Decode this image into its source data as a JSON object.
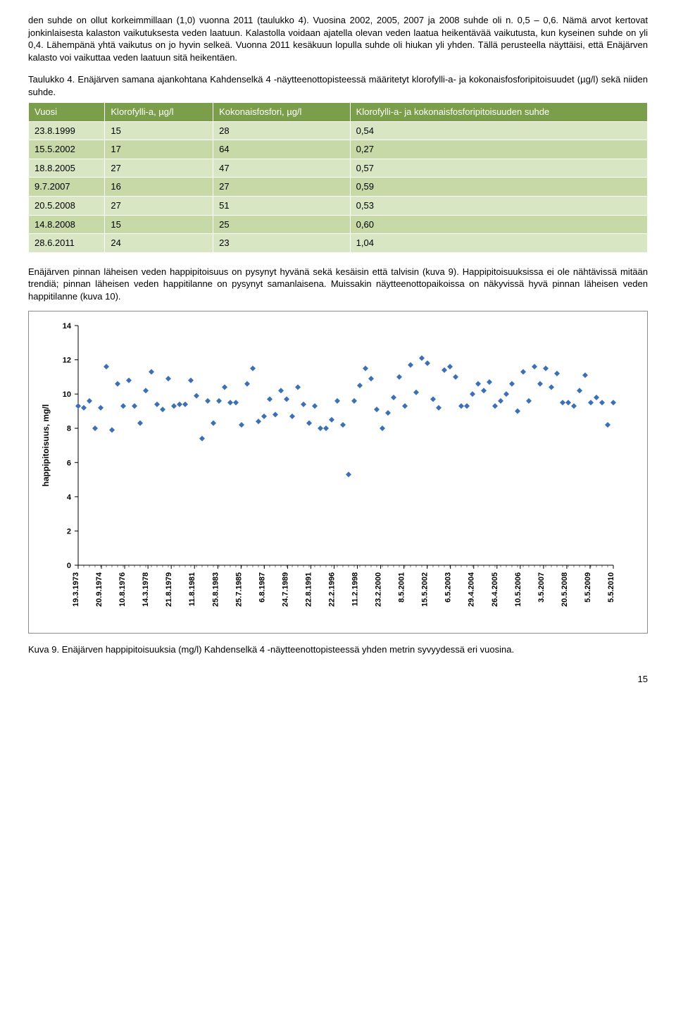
{
  "para1": "den suhde on ollut korkeimmillaan (1,0) vuonna 2011 (taulukko 4). Vuosina 2002, 2005, 2007 ja 2008 suhde oli n. 0,5 – 0,6. Nämä arvot kertovat jonkinlaisesta kalaston vaikutuksesta veden laatuun. Kalastolla voidaan ajatella olevan veden laatua heikentävää vaikutusta, kun kyseinen suhde on yli 0,4. Lähempänä yhtä vaikutus on jo hyvin selkeä. Vuonna 2011 kesäkuun lopulla suhde oli hiukan yli yhden. Tällä perusteella näyttäisi, että Enäjärven kalasto voi vaikuttaa veden laatuun sitä heikentäen.",
  "table_caption": "Taulukko 4. Enäjärven samana ajankohtana Kahdenselkä 4 -näytteenottopisteessä määritetyt klorofylli-a- ja kokonaisfosforipitoisuudet (µg/l) sekä niiden suhde.",
  "table": {
    "columns": [
      "Vuosi",
      "Klorofylli-a, µg/l",
      "Kokonaisfosfori, µg/l",
      "Klorofylli-a- ja kokonaisfosforipitoisuuden suhde"
    ],
    "rows": [
      [
        "23.8.1999",
        "15",
        "28",
        "0,54"
      ],
      [
        "15.5.2002",
        "17",
        "64",
        "0,27"
      ],
      [
        "18.8.2005",
        "27",
        "47",
        "0,57"
      ],
      [
        "9.7.2007",
        "16",
        "27",
        "0,59"
      ],
      [
        "20.5.2008",
        "27",
        "51",
        "0,53"
      ],
      [
        "14.8.2008",
        "15",
        "25",
        "0,60"
      ],
      [
        "28.6.2011",
        "24",
        "23",
        "1,04"
      ]
    ],
    "header_bg": "#7b9e4a",
    "row_bg_even": "#d9e6c4",
    "row_bg_odd": "#c6d9a6",
    "header_text_color": "#ffffff",
    "cell_text_color": "#000000"
  },
  "para2": "Enäjärven pinnan läheisen veden happipitoisuus on pysynyt hyvänä sekä kesäisin että talvisin (kuva 9). Happipitoisuuksissa ei ole nähtävissä mitään trendiä; pinnan läheisen veden happitilanne on pysynyt samanlaisena. Muissakin näytteenottopaikoissa on näkyvissä hyvä pinnan läheisen veden happitilanne (kuva 10).",
  "fig_caption": "Kuva 9. Enäjärven happipitoisuuksia (mg/l) Kahdenselkä 4 -näytteenottopisteessä yhden metrin syvyydessä eri vuosina.",
  "page_number": "15",
  "chart": {
    "type": "scatter",
    "ylabel": "happipitoisuus, mg/l",
    "ylabel_fontsize": 12,
    "ylabel_fontweight": "bold",
    "ylim": [
      0,
      14
    ],
    "ytick_step": 2,
    "background_color": "#ffffff",
    "plot_border_color": "#000000",
    "tick_font_size": 11,
    "xtick_font_size": 11,
    "xtick_fontweight": "bold",
    "marker_style": "diamond",
    "marker_size": 8,
    "marker_color": "#3b6fb6",
    "x_labels": [
      "19.3.1973",
      "20.9.1974",
      "10.8.1976",
      "14.3.1978",
      "21.8.1979",
      "11.8.1981",
      "25.8.1983",
      "25.7.1985",
      "6.8.1987",
      "24.7.1989",
      "22.8.1991",
      "22.2.1996",
      "11.2.1998",
      "23.2.2000",
      "8.5.2001",
      "15.5.2002",
      "6.5.2003",
      "29.4.2004",
      "26.4.2005",
      "10.5.2006",
      "3.5.2007",
      "20.5.2008",
      "5.5.2009",
      "5.5.2010"
    ],
    "points_y": [
      9.3,
      9.2,
      9.6,
      8.0,
      9.2,
      11.6,
      7.9,
      10.6,
      9.3,
      10.8,
      9.3,
      8.3,
      10.2,
      11.3,
      9.4,
      9.1,
      10.9,
      9.3,
      9.4,
      9.4,
      10.8,
      9.9,
      7.4,
      9.6,
      8.3,
      9.6,
      10.4,
      9.5,
      9.5,
      8.2,
      10.6,
      11.5,
      8.4,
      8.7,
      9.7,
      8.8,
      10.2,
      9.7,
      8.7,
      10.4,
      9.4,
      8.3,
      9.3,
      8.0,
      8.0,
      8.5,
      9.6,
      8.2,
      5.3,
      9.6,
      10.5,
      11.5,
      10.9,
      9.1,
      8.0,
      8.9,
      9.8,
      11.0,
      9.3,
      11.7,
      10.1,
      12.1,
      11.8,
      9.7,
      9.2,
      11.4,
      11.6,
      11.0,
      9.3,
      9.3,
      10.0,
      10.6,
      10.2,
      10.7,
      9.3,
      9.6,
      10.0,
      10.6,
      9.0,
      11.3,
      9.6,
      11.6,
      10.6,
      11.5,
      10.4,
      11.2,
      9.5,
      9.5,
      9.3,
      10.2,
      11.1,
      9.5,
      9.8,
      9.5,
      8.2,
      9.5
    ]
  }
}
